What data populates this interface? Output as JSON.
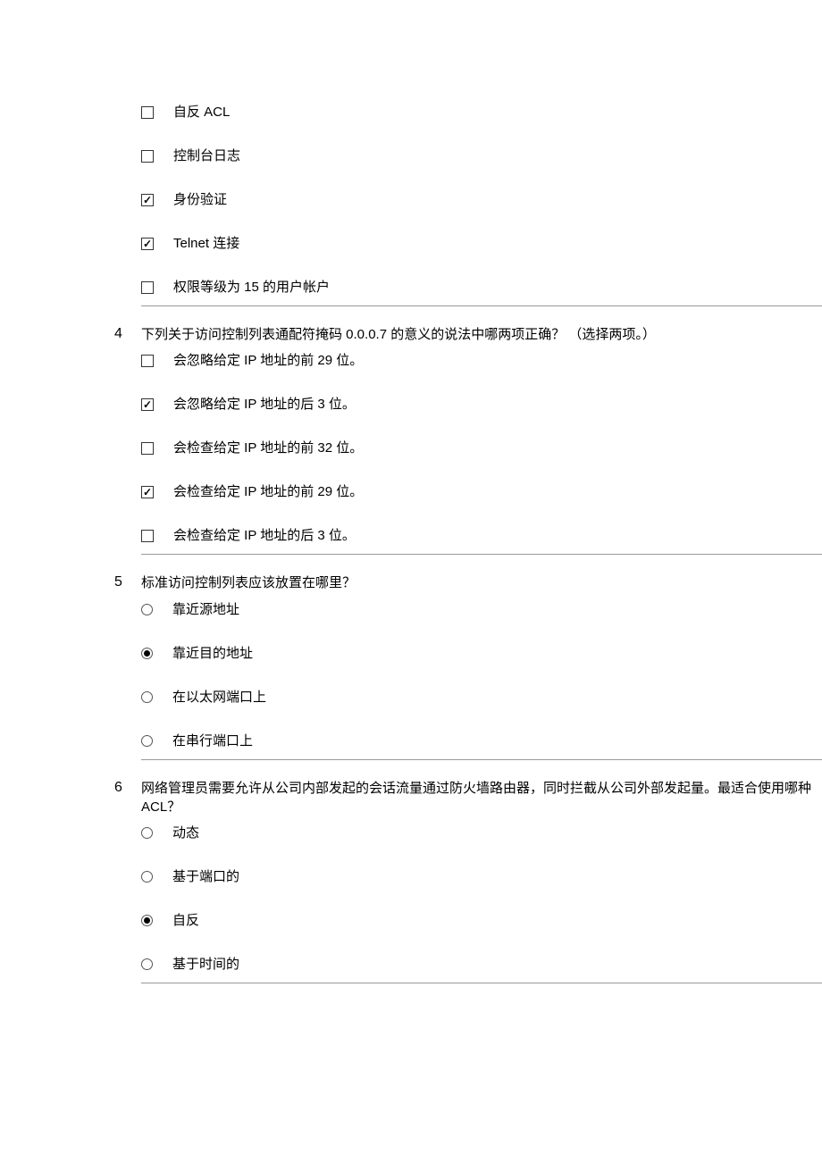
{
  "orphanOptions": {
    "items": [
      {
        "label": "自反 ACL",
        "checked": false,
        "type": "checkbox"
      },
      {
        "label": "控制台日志",
        "checked": false,
        "type": "checkbox"
      },
      {
        "label": "身份验证",
        "checked": true,
        "type": "checkbox"
      },
      {
        "label": "Telnet 连接",
        "checked": true,
        "type": "checkbox"
      },
      {
        "label": "权限等级为 15 的用户帐户",
        "checked": false,
        "type": "checkbox"
      }
    ]
  },
  "questions": [
    {
      "number": "4",
      "text": "下列关于访问控制列表通配符掩码 0.0.0.7 的意义的说法中哪两项正确？ （选择两项。）",
      "type": "checkbox",
      "options": [
        {
          "label": "会忽略给定 IP 地址的前 29 位。",
          "checked": false
        },
        {
          "label": "会忽略给定 IP 地址的后 3 位。",
          "checked": true
        },
        {
          "label": "会检查给定 IP 地址的前 32 位。",
          "checked": false
        },
        {
          "label": "会检查给定 IP 地址的前 29 位。",
          "checked": true
        },
        {
          "label": "会检查给定 IP 地址的后 3 位。",
          "checked": false
        }
      ]
    },
    {
      "number": "5",
      "text": "标准访问控制列表应该放置在哪里？",
      "type": "radio",
      "options": [
        {
          "label": "靠近源地址",
          "checked": false
        },
        {
          "label": "靠近目的地址",
          "checked": true
        },
        {
          "label": "在以太网端口上",
          "checked": false
        },
        {
          "label": "在串行端口上",
          "checked": false
        }
      ]
    },
    {
      "number": "6",
      "text": "网络管理员需要允许从公司内部发起的会话流量通过防火墙路由器，同时拦截从公司外部发起量。最适合使用哪种 ACL？",
      "type": "radio",
      "options": [
        {
          "label": "动态",
          "checked": false
        },
        {
          "label": "基于端口的",
          "checked": false
        },
        {
          "label": "自反",
          "checked": true
        },
        {
          "label": "基于时间的",
          "checked": false
        }
      ]
    }
  ]
}
